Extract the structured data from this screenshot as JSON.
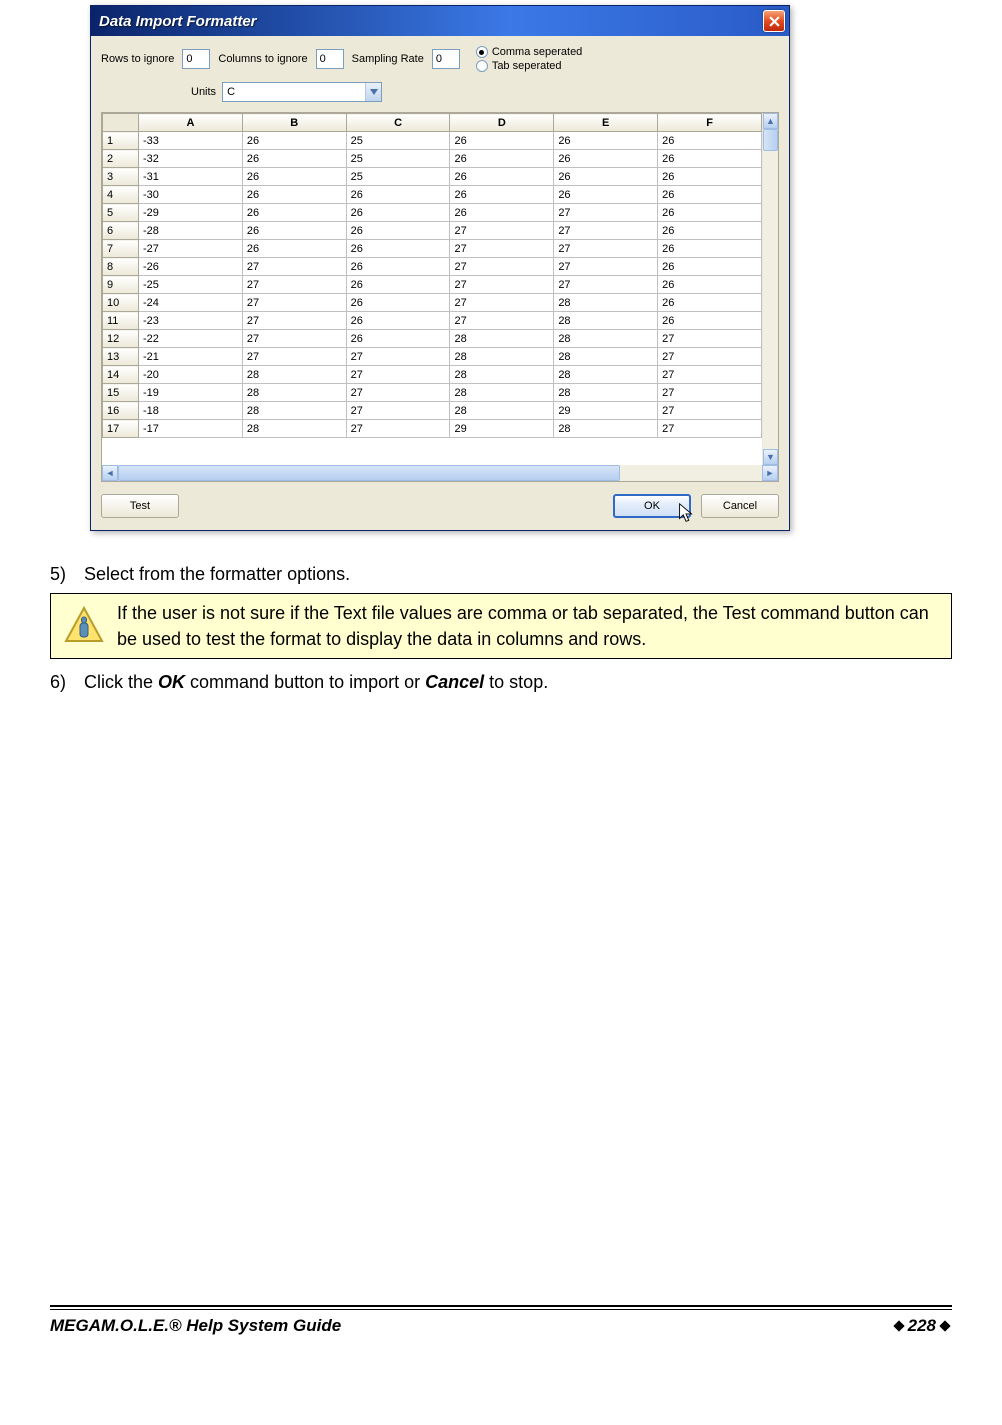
{
  "dialog": {
    "title": "Data Import Formatter",
    "labels": {
      "rows_to_ignore": "Rows to ignore",
      "columns_to_ignore": "Columns to ignore",
      "sampling_rate": "Sampling Rate",
      "units": "Units"
    },
    "values": {
      "rows_to_ignore": "0",
      "columns_to_ignore": "0",
      "sampling_rate": "0",
      "units": "C"
    },
    "radios": {
      "comma": "Comma seperated",
      "tab": "Tab seperated",
      "selected": "comma"
    },
    "buttons": {
      "test": "Test",
      "ok": "OK",
      "cancel": "Cancel"
    }
  },
  "table": {
    "columns": [
      "A",
      "B",
      "C",
      "D",
      "E",
      "F"
    ],
    "rows": [
      {
        "n": "1",
        "cells": [
          "-33",
          "26",
          "25",
          "26",
          "26",
          "26"
        ]
      },
      {
        "n": "2",
        "cells": [
          "-32",
          "26",
          "25",
          "26",
          "26",
          "26"
        ]
      },
      {
        "n": "3",
        "cells": [
          "-31",
          "26",
          "25",
          "26",
          "26",
          "26"
        ]
      },
      {
        "n": "4",
        "cells": [
          "-30",
          "26",
          "26",
          "26",
          "26",
          "26"
        ]
      },
      {
        "n": "5",
        "cells": [
          "-29",
          "26",
          "26",
          "26",
          "27",
          "26"
        ]
      },
      {
        "n": "6",
        "cells": [
          "-28",
          "26",
          "26",
          "27",
          "27",
          "26"
        ]
      },
      {
        "n": "7",
        "cells": [
          "-27",
          "26",
          "26",
          "27",
          "27",
          "26"
        ]
      },
      {
        "n": "8",
        "cells": [
          "-26",
          "27",
          "26",
          "27",
          "27",
          "26"
        ]
      },
      {
        "n": "9",
        "cells": [
          "-25",
          "27",
          "26",
          "27",
          "27",
          "26"
        ]
      },
      {
        "n": "10",
        "cells": [
          "-24",
          "27",
          "26",
          "27",
          "28",
          "26"
        ]
      },
      {
        "n": "11",
        "cells": [
          "-23",
          "27",
          "26",
          "27",
          "28",
          "26"
        ]
      },
      {
        "n": "12",
        "cells": [
          "-22",
          "27",
          "26",
          "28",
          "28",
          "27"
        ]
      },
      {
        "n": "13",
        "cells": [
          "-21",
          "27",
          "27",
          "28",
          "28",
          "27"
        ]
      },
      {
        "n": "14",
        "cells": [
          "-20",
          "28",
          "27",
          "28",
          "28",
          "27"
        ]
      },
      {
        "n": "15",
        "cells": [
          "-19",
          "28",
          "27",
          "28",
          "28",
          "27"
        ]
      },
      {
        "n": "16",
        "cells": [
          "-18",
          "28",
          "27",
          "28",
          "29",
          "27"
        ]
      },
      {
        "n": "17",
        "cells": [
          "-17",
          "28",
          "27",
          "29",
          "28",
          "27"
        ]
      }
    ]
  },
  "instructions": {
    "step5_num": "5)",
    "step5_text": "Select from the formatter options.",
    "tip": "If the user is not sure if the Text file values are comma or tab separated, the Test command button can be used to test the format to display the data in columns and rows.",
    "step6_num": "6)",
    "step6_pre": "Click the ",
    "step6_ok": "OK",
    "step6_mid": " command button to import or ",
    "step6_cancel": "Cancel",
    "step6_post": " to stop."
  },
  "footer": {
    "title_bold": "MEGA",
    "title_rest": "M.O.L.E.® Help System Guide",
    "page": "228"
  },
  "colors": {
    "titlebar_from": "#0a246a",
    "titlebar_to": "#3b79e7",
    "dlg_bg": "#ece9d8",
    "tip_bg": "#ffffcf"
  }
}
